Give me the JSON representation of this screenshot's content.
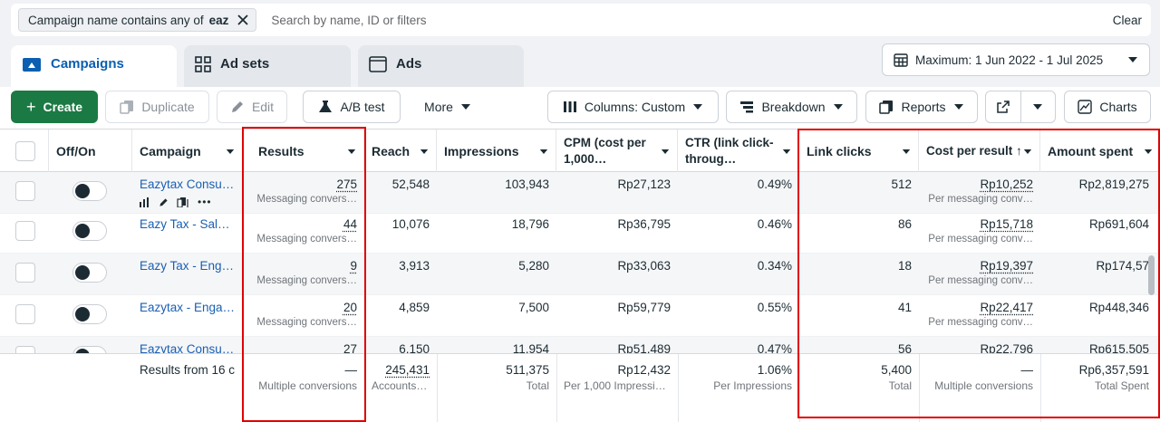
{
  "filter": {
    "chip_prefix": "Campaign name contains any of",
    "chip_value": "eaz",
    "search_placeholder": "Search by name, ID or filters",
    "clear_label": "Clear"
  },
  "tabs": [
    {
      "label": "Campaigns",
      "icon": "folder-icon"
    },
    {
      "label": "Ad sets",
      "icon": "grid-icon"
    },
    {
      "label": "Ads",
      "icon": "window-icon"
    }
  ],
  "date_range": "Maximum: 1 Jun 2022 - 1 Jul 2025",
  "toolbar": {
    "create": "Create",
    "duplicate": "Duplicate",
    "edit": "Edit",
    "ab_test": "A/B test",
    "more": "More",
    "columns": "Columns: Custom",
    "breakdown": "Breakdown",
    "reports": "Reports",
    "charts": "Charts"
  },
  "columns": [
    "Off/On",
    "Campaign",
    "Results",
    "Reach",
    "Impressions",
    "CPM (cost per 1,000…",
    "CTR (link click-throug…",
    "Link clicks",
    "Cost per result ↑",
    "Amount spent"
  ],
  "rows": [
    {
      "campaign": "Eazytax Consul…",
      "results": "275",
      "results_type": "Messaging convers…",
      "reach": "52,548",
      "impressions": "103,943",
      "cpm": "Rp27,123",
      "ctr": "0.49%",
      "link_clicks": "512",
      "cost_per_result": "Rp10,252",
      "cost_type": "Per messaging conv…",
      "amount_spent": "Rp2,819,275"
    },
    {
      "campaign": "Eazy Tax - Sale…",
      "results": "44",
      "results_type": "Messaging convers…",
      "reach": "10,076",
      "impressions": "18,796",
      "cpm": "Rp36,795",
      "ctr": "0.46%",
      "link_clicks": "86",
      "cost_per_result": "Rp15,718",
      "cost_type": "Per messaging conv…",
      "amount_spent": "Rp691,604"
    },
    {
      "campaign": "Eazy Tax - Eng…",
      "results": "9",
      "results_type": "Messaging convers…",
      "reach": "3,913",
      "impressions": "5,280",
      "cpm": "Rp33,063",
      "ctr": "0.34%",
      "link_clicks": "18",
      "cost_per_result": "Rp19,397",
      "cost_type": "Per messaging conv…",
      "amount_spent": "Rp174,57"
    },
    {
      "campaign": "Eazytax - Enga…",
      "results": "20",
      "results_type": "Messaging convers…",
      "reach": "4,859",
      "impressions": "7,500",
      "cpm": "Rp59,779",
      "ctr": "0.55%",
      "link_clicks": "41",
      "cost_per_result": "Rp22,417",
      "cost_type": "Per messaging conv…",
      "amount_spent": "Rp448,346"
    },
    {
      "campaign": "Eazytax Consul…",
      "results": "27",
      "results_type": "",
      "reach": "6,150",
      "impressions": "11,954",
      "cpm": "Rp51,489",
      "ctr": "0.47%",
      "link_clicks": "56",
      "cost_per_result": "Rp22,796",
      "cost_type": "",
      "amount_spent": "Rp615,505"
    }
  ],
  "summary": {
    "label": "Results from 16 c",
    "results": "—",
    "results_sub": "Multiple conversions",
    "reach": "245,431",
    "reach_sub": "Accounts …",
    "impressions": "511,375",
    "impressions_sub": "Total",
    "cpm": "Rp12,432",
    "cpm_sub": "Per 1,000 Impressions",
    "ctr": "1.06%",
    "ctr_sub": "Per Impressions",
    "link_clicks": "5,400",
    "link_clicks_sub": "Total",
    "cost_per_result": "—",
    "cost_sub": "Multiple conversions",
    "amount_spent": "Rp6,357,591",
    "amount_sub": "Total Spent"
  },
  "colors": {
    "accent": "#0a5fb0",
    "create_green": "#1b7a43",
    "highlight_red": "#e00000"
  }
}
